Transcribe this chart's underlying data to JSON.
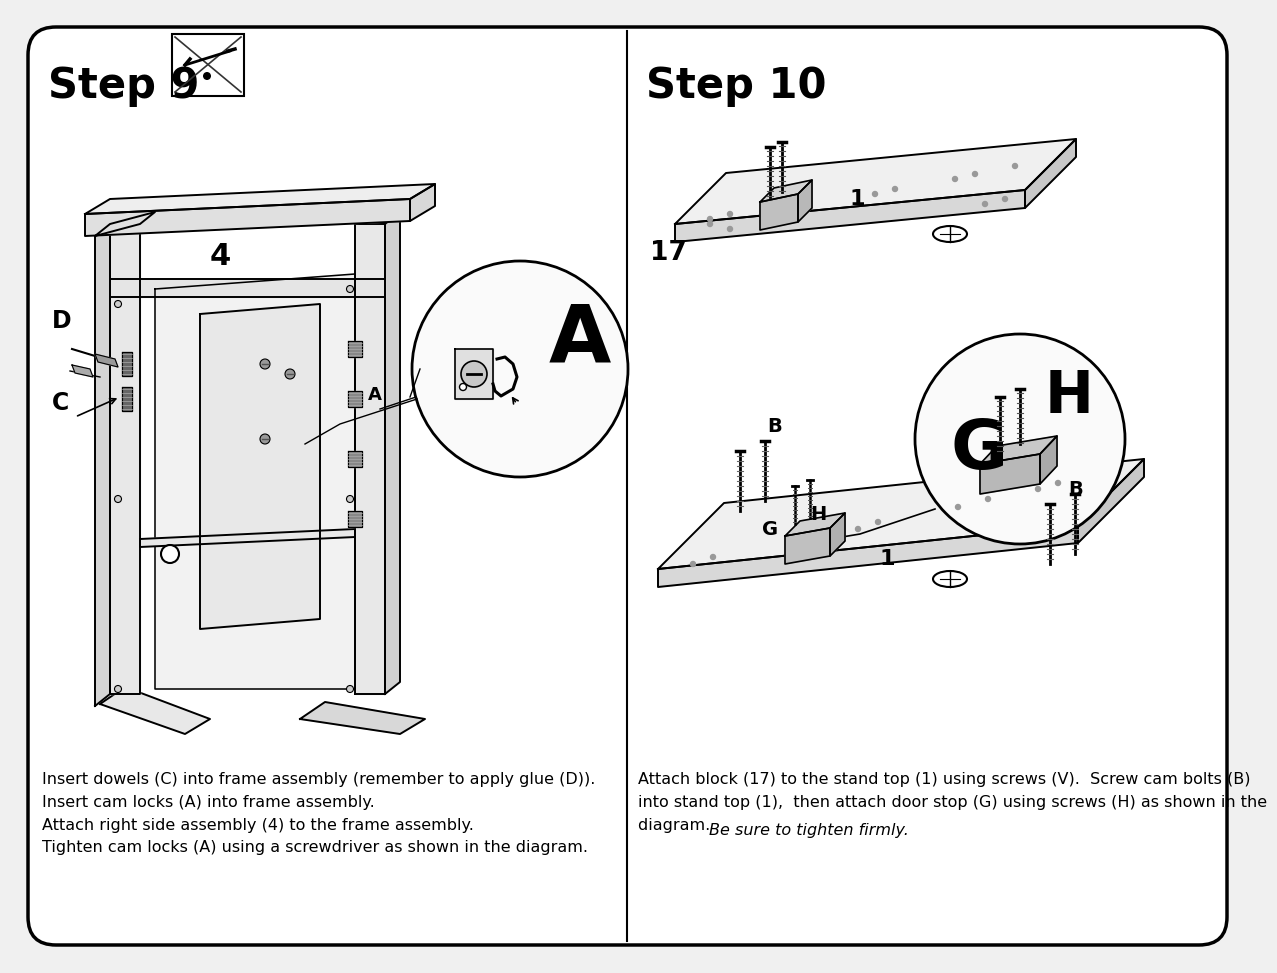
{
  "bg_color": "#f0f0f0",
  "panel_bg": "#ffffff",
  "border_color": "#000000",
  "divider_color": "#000000",
  "step9_title": "Step 9",
  "step10_title": "Step 10",
  "title_fontsize": 30,
  "step9_instructions": [
    "Insert dowels (C) into frame assembly (remember to apply glue (D)).",
    "Insert cam locks (A) into frame assembly.",
    "Attach right side assembly (4) to the frame assembly.",
    "Tighten cam locks (A) using a screwdriver as shown in the diagram."
  ],
  "step10_normal": "Attach block (17) to the stand top (1) using screws (V).  Screw cam bolts (B)\ninto stand top (1),  then attach door stop (G) using screws (H) as shown in the\ndiagram.  ",
  "step10_italic": "Be sure to tighten firmly.",
  "instruction_fontsize": 11.5
}
